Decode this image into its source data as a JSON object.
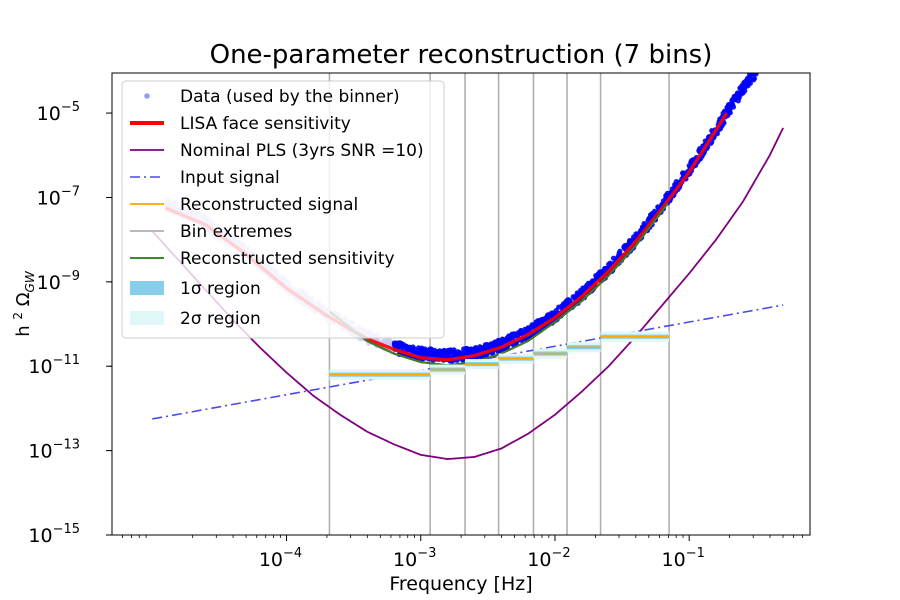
{
  "chart_data": {
    "type": "line",
    "title": "One-parameter reconstruction (7 bins)",
    "xlabel": "Frequency [Hz]",
    "ylabel": "h² Ω_GW",
    "xscale": "log",
    "yscale": "log",
    "xlim_exponent": [
      -5.3,
      -0.1
    ],
    "ylim_exponent": [
      -15,
      -4.05
    ],
    "x_ticks": [
      {
        "exp": -4,
        "label": "10",
        "sup": "−4"
      },
      {
        "exp": -3,
        "label": "10",
        "sup": "−3"
      },
      {
        "exp": -2,
        "label": "10",
        "sup": "−2"
      },
      {
        "exp": -1,
        "label": "10",
        "sup": "−1"
      }
    ],
    "y_ticks": [
      {
        "exp": -5,
        "label": "10",
        "sup": "−5"
      },
      {
        "exp": -7,
        "label": "10",
        "sup": "−7"
      },
      {
        "exp": -9,
        "label": "10",
        "sup": "−9"
      },
      {
        "exp": -11,
        "label": "10",
        "sup": "−11"
      },
      {
        "exp": -13,
        "label": "10",
        "sup": "−13"
      },
      {
        "exp": -15,
        "label": "10",
        "sup": "−15"
      }
    ],
    "colors": {
      "data": "#0000ff",
      "lisa": "#ff0000",
      "pls": "#800080",
      "input": "#4a4af0",
      "recon_signal": "#ffa500",
      "bin": "#b0b0b0",
      "recon_sens": "#1a7a1a",
      "sigma1": "#87ceeb",
      "sigma2": "#e0f7f7"
    },
    "series": [
      {
        "name": "LISA face sensitivity",
        "role": "lisa",
        "x_log10": [
          -4.9,
          -4.6,
          -4.3,
          -4.0,
          -3.7,
          -3.4,
          -3.2,
          -3.0,
          -2.8,
          -2.6,
          -2.4,
          -2.2,
          -2.0,
          -1.8,
          -1.6,
          -1.4,
          -1.2,
          -1.0,
          -0.8,
          -0.72
        ],
        "y_log10": [
          -7.25,
          -7.65,
          -8.35,
          -9.15,
          -9.8,
          -10.35,
          -10.6,
          -10.8,
          -10.85,
          -10.75,
          -10.55,
          -10.25,
          -9.85,
          -9.35,
          -8.75,
          -8.05,
          -7.25,
          -6.4,
          -5.4,
          -5.0
        ]
      },
      {
        "name": "Data (used by the binner)",
        "role": "data",
        "x_log10": [
          -4.9,
          -4.6,
          -4.3,
          -4.0,
          -3.7,
          -3.4,
          -3.2,
          -3.0,
          -2.8,
          -2.6,
          -2.4,
          -2.2,
          -2.0,
          -1.8,
          -1.6,
          -1.4,
          -1.2,
          -1.0,
          -0.8,
          -0.6,
          -0.5
        ],
        "y_log10": [
          -7.15,
          -7.6,
          -8.3,
          -9.1,
          -9.75,
          -10.3,
          -10.55,
          -10.7,
          -10.75,
          -10.7,
          -10.5,
          -10.2,
          -9.8,
          -9.3,
          -8.7,
          -8.0,
          -7.2,
          -6.35,
          -5.4,
          -4.4,
          -4.0
        ]
      },
      {
        "name": "Nominal PLS (3yrs SNR =10)",
        "role": "pls",
        "x_log10": [
          -5.0,
          -4.8,
          -4.6,
          -4.4,
          -4.2,
          -4.0,
          -3.8,
          -3.6,
          -3.4,
          -3.2,
          -3.0,
          -2.8,
          -2.6,
          -2.4,
          -2.2,
          -2.0,
          -1.8,
          -1.6,
          -1.4,
          -1.2,
          -1.0,
          -0.8,
          -0.6,
          -0.4,
          -0.3
        ],
        "y_log10": [
          -7.8,
          -8.5,
          -9.2,
          -9.9,
          -10.55,
          -11.15,
          -11.7,
          -12.15,
          -12.55,
          -12.85,
          -13.1,
          -13.2,
          -13.15,
          -12.95,
          -12.6,
          -12.15,
          -11.6,
          -11.0,
          -10.3,
          -9.55,
          -8.8,
          -8.0,
          -7.1,
          -6.0,
          -5.35
        ]
      },
      {
        "name": "Input signal",
        "role": "input",
        "x_log10": [
          -5.0,
          -0.3
        ],
        "y_log10": [
          -12.25,
          -9.55
        ]
      },
      {
        "name": "Reconstructed signal",
        "role": "recon_signal",
        "steps": [
          {
            "x0": -3.68,
            "x1": -2.93,
            "y": -11.2
          },
          {
            "x0": -2.93,
            "x1": -2.67,
            "y": -11.08
          },
          {
            "x0": -2.67,
            "x1": -2.42,
            "y": -10.95
          },
          {
            "x0": -2.42,
            "x1": -2.16,
            "y": -10.82
          },
          {
            "x0": -2.16,
            "x1": -1.91,
            "y": -10.7
          },
          {
            "x0": -1.91,
            "x1": -1.66,
            "y": -10.55
          },
          {
            "x0": -1.66,
            "x1": -1.15,
            "y": -10.3
          }
        ]
      },
      {
        "name": "Reconstructed sensitivity",
        "role": "recon_sens",
        "x_log10": [
          -3.68,
          -3.4,
          -3.2,
          -3.0,
          -2.8,
          -2.6,
          -2.4,
          -2.2,
          -2.0,
          -1.8,
          -1.6,
          -1.4,
          -1.15
        ],
        "y_log10": [
          -9.7,
          -10.4,
          -10.7,
          -10.9,
          -10.98,
          -10.9,
          -10.7,
          -10.4,
          -9.95,
          -9.45,
          -8.85,
          -8.15,
          -7.1
        ]
      }
    ],
    "bin_extremes_log10": [
      -3.68,
      -2.93,
      -2.67,
      -2.42,
      -2.16,
      -1.91,
      -1.66,
      -1.15
    ],
    "legend": [
      {
        "role": "data",
        "label": "Data (used by the binner)",
        "kind": "dot"
      },
      {
        "role": "lisa",
        "label": "LISA face sensitivity",
        "kind": "thick"
      },
      {
        "role": "pls",
        "label": "Nominal PLS (3yrs SNR =10)",
        "kind": "line"
      },
      {
        "role": "input",
        "label": "Input signal",
        "kind": "dashdot"
      },
      {
        "role": "recon_signal",
        "label": "Reconstructed signal",
        "kind": "line"
      },
      {
        "role": "bin",
        "label": "Bin extremes",
        "kind": "line"
      },
      {
        "role": "recon_sens",
        "label": "Reconstructed sensitivity",
        "kind": "line"
      },
      {
        "role": "sigma1",
        "label": "1σ region",
        "kind": "patch"
      },
      {
        "role": "sigma2",
        "label": "2σ region",
        "kind": "patch"
      }
    ],
    "legend_position": "top-left"
  }
}
